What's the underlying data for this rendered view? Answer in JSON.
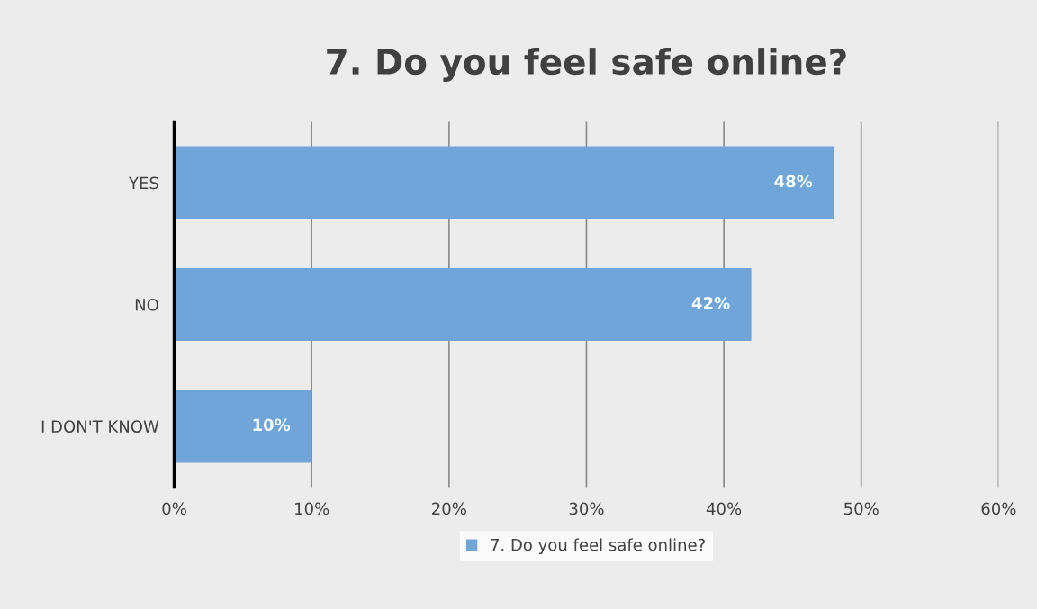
{
  "chart_data": {
    "type": "bar",
    "orientation": "horizontal",
    "title": "7. Do you feel safe online?",
    "categories": [
      "YES",
      "NO",
      "I DON'T KNOW"
    ],
    "series": [
      {
        "name": "7. Do you feel safe online?",
        "color": "#6fa5d8",
        "values": [
          48,
          42,
          10
        ],
        "value_labels": [
          "48%",
          "42%",
          "10%"
        ]
      }
    ],
    "xlim": [
      0,
      60
    ],
    "xticks": [
      {
        "value": 0,
        "label": "0%"
      },
      {
        "value": 10,
        "label": "10%"
      },
      {
        "value": 20,
        "label": "20%"
      },
      {
        "value": 30,
        "label": "30%"
      },
      {
        "value": 40,
        "label": "40%"
      },
      {
        "value": 50,
        "label": "50%"
      },
      {
        "value": 60,
        "label": "60%"
      }
    ],
    "grid": "x",
    "legend": "bottom"
  }
}
